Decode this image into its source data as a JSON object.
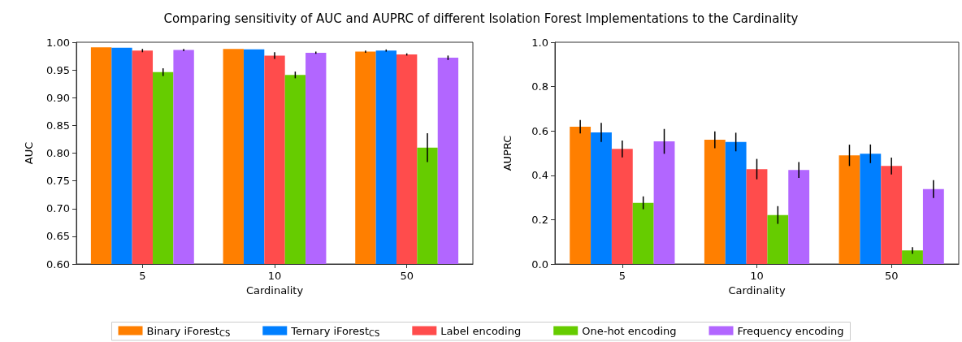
{
  "chart_data": [
    {
      "type": "bar",
      "title": "Comparing sensitivity of AUC and AUPRC of different Isolation Forest Implementations to the Cardinality",
      "xlabel": "Cardinality",
      "ylabel": "AUC",
      "categories": [
        "5",
        "10",
        "50"
      ],
      "series": [
        {
          "name": "Binary iForest$_{CS}$",
          "color": "#ff7f00",
          "values": [
            0.991,
            0.988,
            0.983
          ],
          "errors": [
            null,
            null,
            0.002
          ]
        },
        {
          "name": "Ternary iForest$_{CS}$",
          "color": "#007fff",
          "values": [
            0.99,
            0.987,
            0.985
          ],
          "errors": [
            null,
            null,
            0.002
          ]
        },
        {
          "name": "Label encoding",
          "color": "#ff4c4c",
          "values": [
            0.985,
            0.976,
            0.978
          ],
          "errors": [
            0.003,
            0.006,
            0.002
          ]
        },
        {
          "name": "One-hot encoding",
          "color": "#66cc00",
          "values": [
            0.946,
            0.941,
            0.81
          ],
          "errors": [
            0.007,
            0.006,
            0.026
          ]
        },
        {
          "name": "Frequency encoding",
          "color": "#b266ff",
          "values": [
            0.986,
            0.981,
            0.972
          ],
          "errors": [
            0.002,
            0.002,
            0.004
          ]
        }
      ],
      "ylim": [
        0.6,
        1.0
      ],
      "yticks": [
        {
          "value": 0.6,
          "label": "0.60"
        },
        {
          "value": 0.65,
          "label": "0.65"
        },
        {
          "value": 0.7,
          "label": "0.70"
        },
        {
          "value": 0.75,
          "label": "0.75"
        },
        {
          "value": 0.8,
          "label": "0.80"
        },
        {
          "value": 0.85,
          "label": "0.85"
        },
        {
          "value": 0.9,
          "label": "0.90"
        },
        {
          "value": 0.95,
          "label": "0.95"
        },
        {
          "value": 1.0,
          "label": "1.00"
        }
      ],
      "grid": false,
      "legend": "bottom"
    },
    {
      "type": "bar",
      "xlabel": "Cardinality",
      "ylabel": "AUPRC",
      "categories": [
        "5",
        "10",
        "50"
      ],
      "series": [
        {
          "color": "#ff7f00",
          "values": [
            0.619,
            0.56,
            0.49
          ],
          "errors": [
            0.03,
            0.038,
            0.048
          ]
        },
        {
          "color": "#007fff",
          "values": [
            0.593,
            0.55,
            0.497
          ],
          "errors": [
            0.043,
            0.042,
            0.042
          ]
        },
        {
          "color": "#ff4c4c",
          "values": [
            0.519,
            0.428,
            0.442
          ],
          "errors": [
            0.038,
            0.046,
            0.038
          ]
        },
        {
          "color": "#66cc00",
          "values": [
            0.276,
            0.221,
            0.061
          ],
          "errors": [
            0.029,
            0.04,
            0.015
          ]
        },
        {
          "color": "#b266ff",
          "values": [
            0.553,
            0.424,
            0.338
          ],
          "errors": [
            0.056,
            0.036,
            0.04
          ]
        }
      ],
      "ylim": [
        0,
        1.0
      ],
      "yticks": [
        {
          "value": 0,
          "label": "0.0"
        },
        {
          "value": 0.2,
          "label": "0.2"
        },
        {
          "value": 0.4,
          "label": "0.4"
        },
        {
          "value": 0.6,
          "label": "0.6"
        },
        {
          "value": 0.8,
          "label": "0.8"
        },
        {
          "value": 1.0,
          "label": "1.0"
        }
      ],
      "grid": false,
      "legend": false
    }
  ]
}
